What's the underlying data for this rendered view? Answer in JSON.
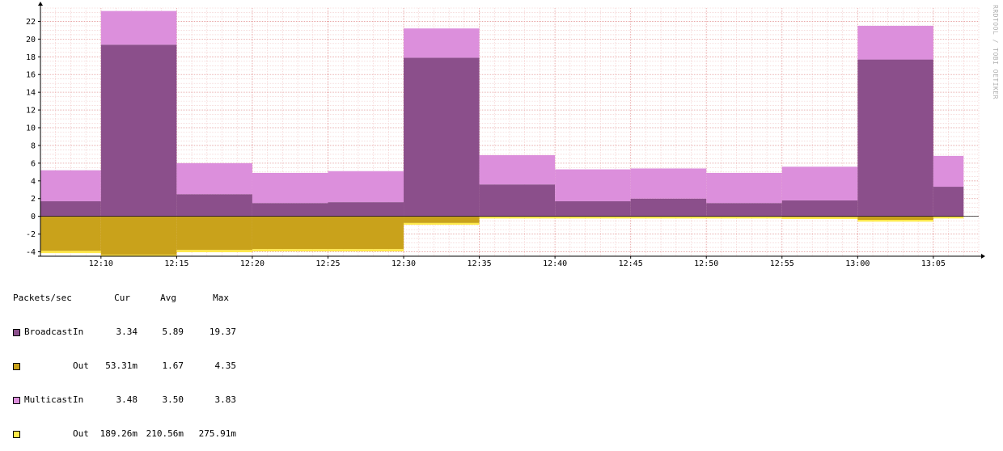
{
  "watermark": "RRDTOOL / TOBI OETIKER",
  "chart_data": {
    "type": "area",
    "x_labels": [
      "12:10",
      "12:15",
      "12:20",
      "12:25",
      "12:30",
      "12:35",
      "12:40",
      "12:45",
      "12:50",
      "12:55",
      "13:00",
      "13:05"
    ],
    "x_label_times": [
      10,
      15,
      20,
      25,
      30,
      35,
      40,
      45,
      50,
      55,
      60,
      65
    ],
    "xlim": [
      6,
      68
    ],
    "y_ticks": [
      -4,
      -2,
      0,
      2,
      4,
      6,
      8,
      10,
      12,
      14,
      16,
      18,
      20,
      22
    ],
    "ylim": [
      -4.5,
      23.5
    ],
    "segments": [
      {
        "start": 6,
        "end": 10,
        "broadcast_in": 1.7,
        "multicast_in": 3.5,
        "broadcast_out": 3.9,
        "multicast_out": 0.25
      },
      {
        "start": 10,
        "end": 15,
        "broadcast_in": 19.37,
        "multicast_in": 3.8,
        "broadcast_out": 4.35,
        "multicast_out": 0.2
      },
      {
        "start": 15,
        "end": 20,
        "broadcast_in": 2.5,
        "multicast_in": 3.5,
        "broadcast_out": 3.8,
        "multicast_out": 0.25
      },
      {
        "start": 20,
        "end": 25,
        "broadcast_in": 1.5,
        "multicast_in": 3.4,
        "broadcast_out": 3.7,
        "multicast_out": 0.25
      },
      {
        "start": 25,
        "end": 30,
        "broadcast_in": 1.6,
        "multicast_in": 3.5,
        "broadcast_out": 3.7,
        "multicast_out": 0.25
      },
      {
        "start": 30,
        "end": 35,
        "broadcast_in": 17.9,
        "multicast_in": 3.3,
        "broadcast_out": 0.75,
        "multicast_out": 0.2
      },
      {
        "start": 35,
        "end": 40,
        "broadcast_in": 3.6,
        "multicast_in": 3.3,
        "broadcast_out": 0.05,
        "multicast_out": 0.2
      },
      {
        "start": 40,
        "end": 45,
        "broadcast_in": 1.7,
        "multicast_in": 3.6,
        "broadcast_out": 0.05,
        "multicast_out": 0.2
      },
      {
        "start": 45,
        "end": 50,
        "broadcast_in": 2.0,
        "multicast_in": 3.4,
        "broadcast_out": 0.05,
        "multicast_out": 0.2
      },
      {
        "start": 50,
        "end": 55,
        "broadcast_in": 1.5,
        "multicast_in": 3.4,
        "broadcast_out": 0.05,
        "multicast_out": 0.2
      },
      {
        "start": 55,
        "end": 60,
        "broadcast_in": 1.8,
        "multicast_in": 3.8,
        "broadcast_out": 0.1,
        "multicast_out": 0.2
      },
      {
        "start": 60,
        "end": 65,
        "broadcast_in": 17.7,
        "multicast_in": 3.8,
        "broadcast_out": 0.4,
        "multicast_out": 0.2
      },
      {
        "start": 65,
        "end": 67,
        "broadcast_in": 3.34,
        "multicast_in": 3.48,
        "broadcast_out": 0.05331,
        "multicast_out": 0.18926
      }
    ],
    "series_colors": {
      "broadcast_in": "#8b4f8b",
      "multicast_in": "#dc8fdc",
      "broadcast_out": "#c9a21b",
      "multicast_out": "#ffe94a"
    },
    "grid": true,
    "grid_minor_color": "#f2c8c8",
    "grid_major_color": "#e6a0a0"
  },
  "legend": {
    "header": {
      "label": "Packets/sec",
      "cur": "Cur",
      "avg": "Avg",
      "max": "Max"
    },
    "rows": [
      {
        "swatch": "#8b4f8b",
        "name": "Broadcast",
        "dir": "In",
        "cur": "3.34",
        "avg": "5.89",
        "max": "19.37"
      },
      {
        "swatch": "#c9a21b",
        "name": "",
        "dir": "Out",
        "cur": "53.31m",
        "avg": "1.67",
        "max": "4.35"
      },
      {
        "swatch": "#dc8fdc",
        "name": "Multicast",
        "dir": "In",
        "cur": "3.48",
        "avg": "3.50",
        "max": "3.83"
      },
      {
        "swatch": "#ffe94a",
        "name": "",
        "dir": "Out",
        "cur": "189.26m",
        "avg": "210.56m",
        "max": "275.91m"
      }
    ]
  }
}
